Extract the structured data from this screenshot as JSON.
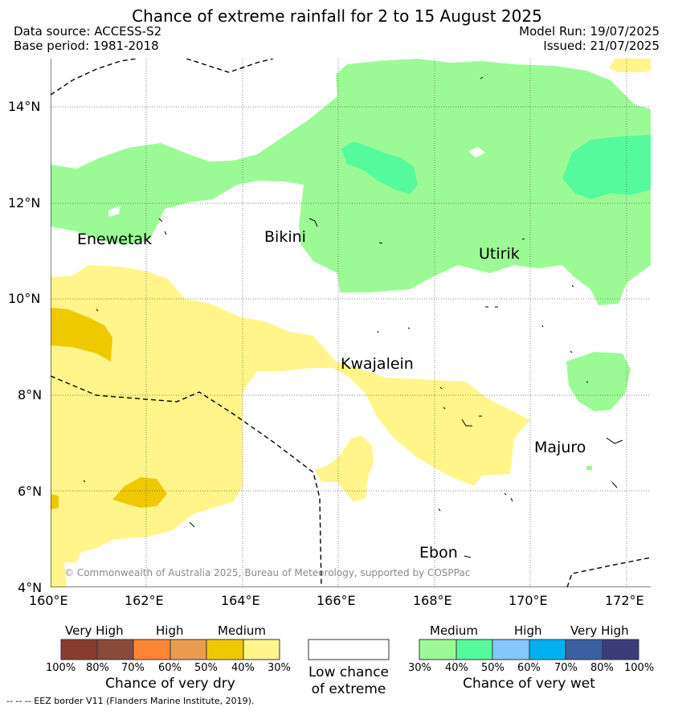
{
  "title": "Chance of extreme rainfall for 2 to 15 August 2025",
  "data_source": "Data source: ACCESS-S2",
  "base_period": "Base period: 1981-2018",
  "model_run": "Model Run: 19/07/2025",
  "issued": "Issued: 21/07/2025",
  "lat_ticks": [
    "4°N",
    "6°N",
    "8°N",
    "10°N",
    "12°N",
    "14°N"
  ],
  "lon_ticks": [
    "160°E",
    "162°E",
    "164°E",
    "166°E",
    "168°E",
    "170°E",
    "172°E"
  ],
  "places": [
    "Enewetak",
    "Bikini",
    "Utirik",
    "Kwajalein",
    "Majuro",
    "Ebon"
  ],
  "copyright": "© Commonwealth of Australia 2025, Bureau of Meteorology, supported by COSPPac",
  "dry_legend": {
    "levels": [
      "Very High",
      "High",
      "Medium"
    ],
    "percents": [
      "100%",
      "80%",
      "70%",
      "60%",
      "50%",
      "40%",
      "30%"
    ],
    "colors": [
      "#8b3a2f",
      "#8a4a3a",
      "#ff8433",
      "#eb9b4f",
      "#eec900",
      "#fff58a"
    ],
    "label": "Chance of very dry"
  },
  "low_legend": {
    "line1": "Low chance",
    "line2": "of extreme"
  },
  "wet_legend": {
    "levels": [
      "Medium",
      "High",
      "Very High"
    ],
    "percents": [
      "30%",
      "40%",
      "50%",
      "60%",
      "70%",
      "80%",
      "100%"
    ],
    "colors": [
      "#9cfa96",
      "#55fa9c",
      "#82c8fa",
      "#00b0f0",
      "#3b5fa0",
      "#3c3c78"
    ],
    "label": "Chance of very wet"
  },
  "footnote": "-- -- -- EEZ border V11 (Flanders Marine Institute, 2019)."
}
